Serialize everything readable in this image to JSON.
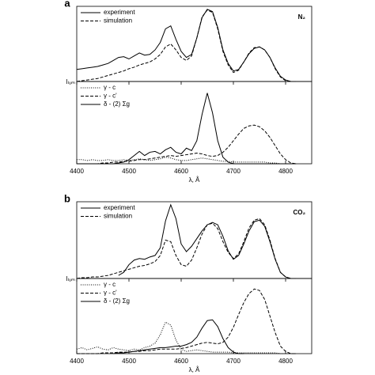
{
  "chart_data": [
    {
      "type": "line",
      "panel_label": "a",
      "annotation": "N₂",
      "legend": "upper left",
      "x": [
        4400,
        4410,
        4420,
        4430,
        4440,
        4450,
        4460,
        4470,
        4480,
        4490,
        4500,
        4510,
        4520,
        4530,
        4540,
        4550,
        4560,
        4570,
        4580,
        4590,
        4600,
        4610,
        4620,
        4630,
        4640,
        4650,
        4660,
        4670,
        4680,
        4690,
        4700,
        4710,
        4720,
        4730,
        4740,
        4750,
        4760,
        4770,
        4780,
        4790,
        4800,
        4810,
        4820
      ],
      "xlim": [
        4400,
        4850
      ],
      "ylim": [
        0,
        1
      ],
      "series": [
        {
          "name": "experiment",
          "color": "#000000",
          "style": "solid",
          "values": [
            0.16,
            0.17,
            0.18,
            0.19,
            0.2,
            0.22,
            0.24,
            0.28,
            0.32,
            0.33,
            0.3,
            0.34,
            0.38,
            0.35,
            0.36,
            0.42,
            0.52,
            0.7,
            0.74,
            0.56,
            0.4,
            0.32,
            0.36,
            0.58,
            0.85,
            0.96,
            0.93,
            0.72,
            0.42,
            0.24,
            0.14,
            0.16,
            0.26,
            0.37,
            0.44,
            0.46,
            0.42,
            0.32,
            0.18,
            0.07,
            0.02,
            0,
            0
          ]
        },
        {
          "name": "simulation",
          "color": "#000000",
          "style": "dashed",
          "values": [
            0,
            0.01,
            0.02,
            0.03,
            0.04,
            0.06,
            0.08,
            0.1,
            0.12,
            0.14,
            0.17,
            0.19,
            0.22,
            0.24,
            0.26,
            0.3,
            0.36,
            0.46,
            0.5,
            0.42,
            0.32,
            0.28,
            0.34,
            0.58,
            0.86,
            0.95,
            0.92,
            0.7,
            0.4,
            0.22,
            0.12,
            0.15,
            0.26,
            0.38,
            0.45,
            0.46,
            0.42,
            0.32,
            0.17,
            0.06,
            0.01,
            0,
            0
          ]
        }
      ]
    },
    {
      "type": "line",
      "legend": "upper left",
      "ylabel": "Iₗᵤₘ",
      "xlabel": "λ, Å",
      "x": [
        4400,
        4410,
        4420,
        4430,
        4440,
        4450,
        4460,
        4470,
        4480,
        4490,
        4500,
        4510,
        4520,
        4530,
        4540,
        4550,
        4560,
        4570,
        4580,
        4590,
        4600,
        4610,
        4620,
        4630,
        4640,
        4650,
        4660,
        4670,
        4680,
        4690,
        4700,
        4710,
        4720,
        4730,
        4740,
        4750,
        4760,
        4770,
        4780,
        4790,
        4800,
        4810,
        4820
      ],
      "xlim": [
        4400,
        4850
      ],
      "ylim": [
        0,
        1
      ],
      "xticks": [
        4400,
        4500,
        4600,
        4700,
        4800
      ],
      "series": [
        {
          "name": "γ - c",
          "color": "#000000",
          "style": "dotted",
          "values": [
            0.05,
            0.05,
            0.04,
            0.05,
            0.04,
            0.04,
            0.05,
            0.04,
            0.04,
            0.05,
            0.04,
            0.05,
            0.06,
            0.05,
            0.04,
            0.05,
            0.06,
            0.08,
            0.07,
            0.05,
            0.04,
            0.04,
            0.05,
            0.06,
            0.07,
            0.06,
            0.05,
            0.04,
            0.03,
            0.03,
            0.02,
            0.02,
            0.02,
            0.02,
            0.02,
            0.02,
            0.02,
            0.01,
            0.01,
            0,
            0,
            0,
            0
          ]
        },
        {
          "name": "γ - c'",
          "color": "#000000",
          "style": "dashed",
          "values": [
            0,
            0,
            0,
            0,
            0,
            0.01,
            0.01,
            0.02,
            0.02,
            0.03,
            0.03,
            0.04,
            0.05,
            0.05,
            0.06,
            0.07,
            0.08,
            0.09,
            0.1,
            0.09,
            0.1,
            0.11,
            0.12,
            0.13,
            0.12,
            0.1,
            0.09,
            0.1,
            0.14,
            0.2,
            0.28,
            0.36,
            0.43,
            0.46,
            0.47,
            0.45,
            0.4,
            0.32,
            0.22,
            0.12,
            0.05,
            0.01,
            0
          ]
        },
        {
          "name": "δ - (2) Σg",
          "color": "#000000",
          "style": "solid",
          "values": [
            0,
            0,
            0,
            0,
            0,
            0,
            0,
            0,
            0.01,
            0.02,
            0.05,
            0.1,
            0.15,
            0.1,
            0.14,
            0.15,
            0.12,
            0.17,
            0.2,
            0.14,
            0.12,
            0.19,
            0.16,
            0.28,
            0.6,
            0.86,
            0.62,
            0.28,
            0.08,
            0.02,
            0,
            0,
            0,
            0,
            0,
            0,
            0,
            0,
            0,
            0,
            0,
            0,
            0
          ]
        }
      ]
    },
    {
      "type": "line",
      "panel_label": "b",
      "annotation": "CO₂",
      "legend": "upper left",
      "x": [
        4400,
        4410,
        4420,
        4430,
        4440,
        4450,
        4460,
        4470,
        4480,
        4490,
        4500,
        4510,
        4520,
        4530,
        4540,
        4550,
        4560,
        4570,
        4580,
        4590,
        4600,
        4610,
        4620,
        4630,
        4640,
        4650,
        4660,
        4670,
        4680,
        4690,
        4700,
        4710,
        4720,
        4730,
        4740,
        4750,
        4760,
        4770,
        4780,
        4790,
        4800,
        4810,
        4820
      ],
      "xlim": [
        4400,
        4850
      ],
      "ylim": [
        0,
        1
      ],
      "series": [
        {
          "name": "experiment",
          "color": "#000000",
          "style": "solid",
          "values": [
            null,
            null,
            null,
            null,
            null,
            null,
            null,
            null,
            0.04,
            0.08,
            0.18,
            0.24,
            0.26,
            0.25,
            0.28,
            0.3,
            0.4,
            0.75,
            0.96,
            0.78,
            0.45,
            0.35,
            0.42,
            0.52,
            0.62,
            0.7,
            0.73,
            0.7,
            0.55,
            0.36,
            0.25,
            0.3,
            0.45,
            0.62,
            0.74,
            0.76,
            0.68,
            0.48,
            0.25,
            0.08,
            0.02,
            0,
            0
          ]
        },
        {
          "name": "simulation",
          "color": "#000000",
          "style": "dashed",
          "values": [
            0,
            0.01,
            0.01,
            0.02,
            0.02,
            0.03,
            0.04,
            0.06,
            0.08,
            0.1,
            0.12,
            0.14,
            0.16,
            0.17,
            0.19,
            0.22,
            0.3,
            0.5,
            0.48,
            0.3,
            0.18,
            0.16,
            0.24,
            0.4,
            0.58,
            0.7,
            0.72,
            0.65,
            0.48,
            0.34,
            0.26,
            0.32,
            0.48,
            0.66,
            0.76,
            0.78,
            0.7,
            0.5,
            0.26,
            0.08,
            0.02,
            0,
            0
          ]
        }
      ]
    },
    {
      "type": "line",
      "legend": "upper left",
      "ylabel": "Iₗᵤₘ",
      "xlabel": "λ, Å",
      "x": [
        4400,
        4410,
        4420,
        4430,
        4440,
        4450,
        4460,
        4470,
        4480,
        4490,
        4500,
        4510,
        4520,
        4530,
        4540,
        4550,
        4560,
        4570,
        4580,
        4590,
        4600,
        4610,
        4620,
        4630,
        4640,
        4650,
        4660,
        4670,
        4680,
        4690,
        4700,
        4710,
        4720,
        4730,
        4740,
        4750,
        4760,
        4770,
        4780,
        4790,
        4800,
        4810,
        4820
      ],
      "xlim": [
        4400,
        4850
      ],
      "ylim": [
        0,
        1
      ],
      "xticks": [
        4400,
        4500,
        4600,
        4700,
        4800
      ],
      "series": [
        {
          "name": "γ - c",
          "color": "#000000",
          "style": "dotted",
          "values": [
            0.06,
            0.08,
            0.05,
            0.07,
            0.09,
            0.06,
            0.05,
            0.08,
            0.06,
            0.05,
            0.04,
            0.06,
            0.05,
            0.08,
            0.1,
            0.14,
            0.25,
            0.42,
            0.38,
            0.18,
            0.06,
            0.03,
            0.04,
            0.05,
            0.04,
            0.03,
            0.02,
            0.02,
            0.02,
            0.02,
            0.01,
            0.01,
            0.01,
            0.01,
            0.01,
            0.01,
            0.01,
            0.01,
            0.01,
            0,
            0,
            0,
            0
          ]
        },
        {
          "name": "γ - c'",
          "color": "#000000",
          "style": "dashed",
          "values": [
            0,
            0,
            0,
            0,
            0,
            0.01,
            0.01,
            0.01,
            0.02,
            0.02,
            0.02,
            0.03,
            0.03,
            0.04,
            0.04,
            0.05,
            0.06,
            0.06,
            0.06,
            0.06,
            0.07,
            0.08,
            0.1,
            0.12,
            0.14,
            0.15,
            0.14,
            0.13,
            0.15,
            0.22,
            0.35,
            0.52,
            0.68,
            0.8,
            0.86,
            0.84,
            0.72,
            0.5,
            0.28,
            0.1,
            0.03,
            0,
            0
          ]
        },
        {
          "name": "δ - (2) Σg",
          "color": "#000000",
          "style": "solid",
          "values": [
            null,
            null,
            null,
            null,
            null,
            null,
            null,
            0,
            0.01,
            0.01,
            0.02,
            0.03,
            0.04,
            0.05,
            0.06,
            0.07,
            0.08,
            0.08,
            0.09,
            0.1,
            0.1,
            0.12,
            0.15,
            0.22,
            0.34,
            0.44,
            0.45,
            0.36,
            0.2,
            0.08,
            0.02,
            0,
            0,
            null,
            null,
            null,
            null,
            null,
            null,
            null,
            null,
            null,
            null
          ]
        }
      ]
    }
  ]
}
